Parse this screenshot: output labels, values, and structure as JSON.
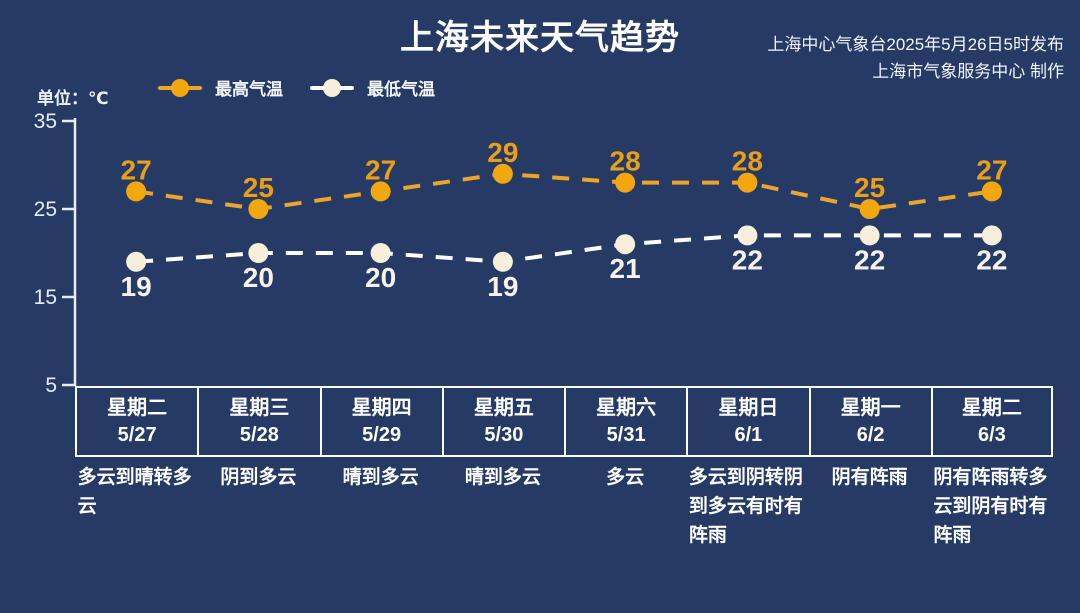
{
  "page": {
    "background_color": "#263a66"
  },
  "header": {
    "title": "上海未来天气趋势",
    "source_line1": "上海中心气象台2025年5月26日5时发布",
    "source_line2": "上海市气象服务中心 制作"
  },
  "unit_label": "单位：℃",
  "colors": {
    "background": "#263a66",
    "axis": "#e8edf5",
    "high_line": "#eda42b",
    "high_dot": "#f3a70e",
    "high_label": "#eb9f16",
    "low_line": "#ffffff",
    "low_dot": "#f7eedc",
    "low_label": "#f7f3ea",
    "text": "#ffffff"
  },
  "chart_data": {
    "type": "line",
    "title": "上海未来天气趋势",
    "ylabel": "℃",
    "ylim": [
      5,
      35
    ],
    "y_ticks": [
      35,
      25,
      15,
      5
    ],
    "grid": false,
    "legend_position": "top",
    "categories": [
      {
        "weekday": "星期二",
        "date": "5/27",
        "weather": "多云到晴转多云"
      },
      {
        "weekday": "星期三",
        "date": "5/28",
        "weather": "阴到多云"
      },
      {
        "weekday": "星期四",
        "date": "5/29",
        "weather": "晴到多云"
      },
      {
        "weekday": "星期五",
        "date": "5/30",
        "weather": "晴到多云"
      },
      {
        "weekday": "星期六",
        "date": "5/31",
        "weather": "多云"
      },
      {
        "weekday": "星期日",
        "date": "6/1",
        "weather": "多云到阴转阴到多云有时有阵雨"
      },
      {
        "weekday": "星期一",
        "date": "6/2",
        "weather": "阴有阵雨"
      },
      {
        "weekday": "星期二",
        "date": "6/3",
        "weather": "阴有阵雨转多云到阴有时有阵雨"
      }
    ],
    "series": [
      {
        "name": "最高气温",
        "values": [
          27,
          25,
          27,
          29,
          28,
          28,
          25,
          27
        ],
        "line_color": "#eda42b",
        "dot_color": "#f3a70e",
        "label_color": "#eb9f16",
        "label_position": "above"
      },
      {
        "name": "最低气温",
        "values": [
          19,
          20,
          20,
          19,
          21,
          22,
          22,
          22
        ],
        "line_color": "#ffffff",
        "dot_color": "#f7eedc",
        "label_color": "#f7f3ea",
        "label_position": "below"
      }
    ]
  }
}
